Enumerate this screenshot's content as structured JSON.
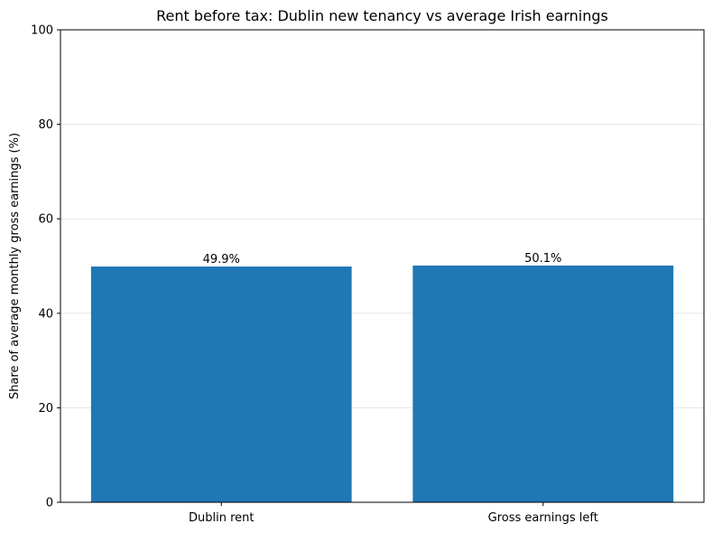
{
  "chart_data": {
    "type": "bar",
    "title": "Rent before tax: Dublin new tenancy vs average Irish earnings",
    "xlabel": "",
    "ylabel": "Share of average monthly gross earnings (%)",
    "categories": [
      "Dublin rent",
      "Gross earnings left"
    ],
    "values": [
      49.9,
      50.1
    ],
    "value_labels": [
      "49.9%",
      "50.1%"
    ],
    "ylim": [
      0,
      100
    ],
    "yticks": [
      0,
      20,
      40,
      60,
      80,
      100
    ],
    "grid": "y-axis, light",
    "bar_color": "#1f77b4",
    "grid_color": "#e6e6e6",
    "legend": "none"
  }
}
